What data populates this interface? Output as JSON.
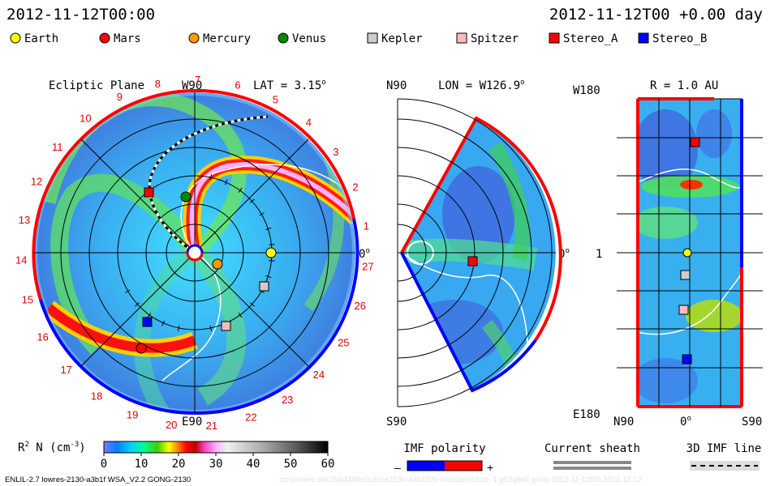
{
  "header": {
    "datetime": "2012-11-12T00:00",
    "right": "2012-11-12T00 +0.00 day"
  },
  "legend": [
    {
      "label": "Earth",
      "color": "#ffff00",
      "shape": "circle"
    },
    {
      "label": "Mars",
      "color": "#ff0000",
      "shape": "circle"
    },
    {
      "label": "Mercury",
      "color": "#ff9900",
      "shape": "circle"
    },
    {
      "label": "Venus",
      "color": "#008800",
      "shape": "circle"
    },
    {
      "label": "Kepler",
      "color": "#cccccc",
      "shape": "square"
    },
    {
      "label": "Spitzer",
      "color": "#ffbbbb",
      "shape": "square"
    },
    {
      "label": "Stereo_A",
      "color": "#ff0000",
      "shape": "square"
    },
    {
      "label": "Stereo_B",
      "color": "#0000ff",
      "shape": "square"
    }
  ],
  "ecliptic": {
    "title": "Ecliptic Plane",
    "top_label": "W90",
    "bottom_label": "E90",
    "right_label": "0",
    "lat_label": "LAT = 3.15",
    "degree_mark": "o",
    "carrington_labels": [
      "1",
      "2",
      "3",
      "4",
      "5",
      "6",
      "7",
      "8",
      "9",
      "10",
      "11",
      "12",
      "13",
      "14",
      "15",
      "16",
      "17",
      "18",
      "19",
      "20",
      "21",
      "22",
      "23",
      "24",
      "25",
      "26",
      "27"
    ]
  },
  "meridional": {
    "top_label": "N90",
    "bottom_label": "S90",
    "lon_label": "LON = W126.9",
    "right_label": "0",
    "degree_mark": "o"
  },
  "sphere": {
    "r_label": "R = 1.0 AU",
    "top_left": "W180",
    "bottom_left": "E180",
    "mid_left": "1",
    "x_left": "N90",
    "x_mid": "0",
    "x_right": "S90",
    "degree_mark": "o"
  },
  "colorbar": {
    "label": "R",
    "sup": "2",
    "label_rest": " N (cm",
    "unit_sup": "-3",
    "label_end": ")",
    "ticks": [
      "0",
      "10",
      "20",
      "30",
      "40",
      "50",
      "60"
    ]
  },
  "imf": {
    "title": "IMF polarity",
    "minus": "–",
    "plus": "+",
    "minus_color": "#0000ff",
    "plus_color": "#ff0000"
  },
  "current_sheath": {
    "title": "Current sheath"
  },
  "imf_line": {
    "title": "3D IMF line"
  },
  "footer": {
    "model": "ENLIL-2.7 lowres-2130-a3b1f WSA_V2.2 GONG-2130",
    "watermark": "ccmc/swrc-old/2564386c1c2c1e2130-a3b1f15--mcp1umn1cd--1.g53g6d2 gong-2012-11-12t00 2012-11-12"
  },
  "chart_data": [
    {
      "type": "heatmap",
      "title": "Ecliptic Plane",
      "lat": 3.15,
      "bodies": [
        {
          "name": "Earth",
          "angle_deg": 0,
          "r_au": 1.0
        },
        {
          "name": "Mars",
          "angle_deg": -125,
          "r_au": 1.45
        },
        {
          "name": "Mercury",
          "angle_deg": -30,
          "r_au": 0.35
        },
        {
          "name": "Venus",
          "angle_deg": 92,
          "r_au": 0.72
        },
        {
          "name": "Kepler",
          "angle_deg": -25,
          "r_au": 1.03
        },
        {
          "name": "Spitzer",
          "angle_deg": -62,
          "r_au": 1.0
        },
        {
          "name": "Stereo_A",
          "angle_deg": 126.9,
          "r_au": 0.96
        },
        {
          "name": "Stereo_B",
          "angle_deg": -130,
          "r_au": 1.0
        }
      ]
    },
    {
      "type": "heatmap",
      "title": "LON = W126.9",
      "lon": 126.9,
      "bodies": [
        {
          "name": "Stereo_A",
          "r_au": 0.96,
          "lat_deg": 0
        }
      ]
    },
    {
      "type": "heatmap",
      "title": "R = 1.0 AU",
      "r_au": 1.0,
      "bodies": [
        {
          "name": "Stereo_A",
          "lon_deg": 126.9,
          "lat_deg": -1
        },
        {
          "name": "Earth",
          "lon_deg": 0,
          "lat_deg": 3
        },
        {
          "name": "Kepler",
          "lon_deg": -25,
          "lat_deg": 3
        },
        {
          "name": "Spitzer",
          "lon_deg": -62,
          "lat_deg": 8
        },
        {
          "name": "Stereo_B",
          "lon_deg": -130,
          "lat_deg": 3
        }
      ]
    }
  ]
}
